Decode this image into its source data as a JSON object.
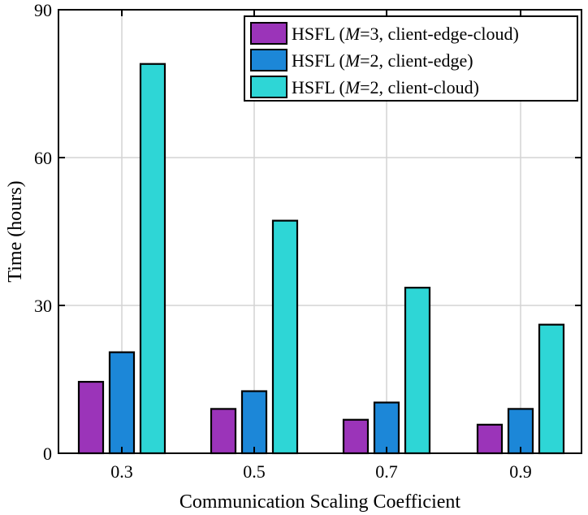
{
  "chart_data": {
    "type": "bar",
    "title": "",
    "xlabel": "Communication Scaling Coefficient",
    "ylabel": "Time (hours)",
    "categories": [
      "0.3",
      "0.5",
      "0.7",
      "0.9"
    ],
    "ylim": [
      0,
      90
    ],
    "yticks": [
      "0",
      "30",
      "60",
      "90"
    ],
    "grid": true,
    "legend_position": "top-right",
    "series": [
      {
        "name": "HSFL (M=3, client-edge-cloud)",
        "legend_prefix": "HSFL (",
        "legend_italic": "M",
        "legend_suffix": "=3, client-edge-cloud)",
        "color": "#9B34B9",
        "values": [
          14.5,
          9.0,
          6.8,
          5.8
        ]
      },
      {
        "name": "HSFL (M=2, client-edge)",
        "legend_prefix": "HSFL (",
        "legend_italic": "M",
        "legend_suffix": "=2, client-edge)",
        "color": "#1C87D8",
        "values": [
          20.5,
          12.6,
          10.3,
          9.0
        ]
      },
      {
        "name": "HSFL (M=2, client-cloud)",
        "legend_prefix": "HSFL (",
        "legend_italic": "M",
        "legend_suffix": "=2, client-cloud)",
        "color": "#2ED6D6",
        "values": [
          79.0,
          47.2,
          33.6,
          26.1
        ]
      }
    ]
  }
}
